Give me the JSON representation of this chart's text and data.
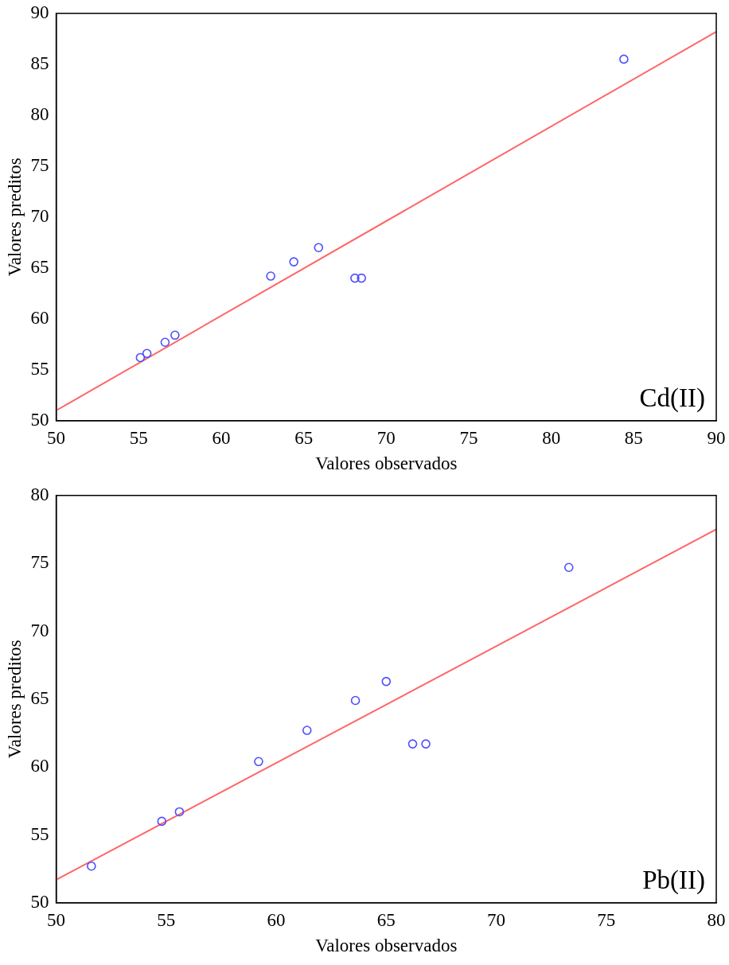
{
  "chart_data": [
    {
      "type": "scatter",
      "xlabel": "Valores observados",
      "ylabel": "Valores preditos",
      "annotations": [
        "Cd(II)"
      ],
      "marker": "circle",
      "grid": false,
      "legend": false,
      "xlim": [
        50,
        90
      ],
      "xticks": [
        50,
        55,
        60,
        65,
        70,
        75,
        80,
        85,
        90
      ],
      "ylim": [
        50,
        90
      ],
      "yticks": [
        50,
        55,
        60,
        65,
        70,
        75,
        80,
        85,
        90
      ],
      "series": [
        {
          "type": "scatter",
          "color": "#4d4dff",
          "x": [
            55.1,
            55.5,
            56.6,
            57.2,
            63.0,
            64.4,
            65.9,
            68.1,
            68.5,
            84.4
          ],
          "values": [
            56.2,
            56.6,
            57.7,
            58.4,
            64.2,
            65.6,
            67.0,
            64.0,
            64.0,
            85.5
          ]
        },
        {
          "type": "line",
          "color": "#ff6666",
          "marker": "none",
          "x": [
            50,
            90
          ],
          "values": [
            51.0,
            88.2
          ]
        }
      ]
    },
    {
      "type": "scatter",
      "xlabel": "Valores observados",
      "ylabel": "Valores preditos",
      "annotations": [
        "Pb(II)"
      ],
      "marker": "circle",
      "grid": false,
      "legend": false,
      "xlim": [
        50,
        80
      ],
      "xticks": [
        50,
        55,
        60,
        65,
        70,
        75,
        80
      ],
      "ylim": [
        50,
        80
      ],
      "yticks": [
        50,
        55,
        60,
        65,
        70,
        75,
        80
      ],
      "series": [
        {
          "type": "scatter",
          "color": "#4d4dff",
          "x": [
            51.6,
            54.8,
            55.6,
            59.2,
            61.4,
            63.6,
            65.0,
            66.2,
            66.8,
            73.3
          ],
          "values": [
            52.7,
            56.0,
            56.7,
            60.4,
            62.7,
            64.9,
            66.3,
            61.7,
            61.7,
            74.7
          ]
        },
        {
          "type": "line",
          "color": "#ff6666",
          "marker": "none",
          "x": [
            50,
            80
          ],
          "values": [
            51.7,
            77.5
          ]
        }
      ]
    }
  ]
}
